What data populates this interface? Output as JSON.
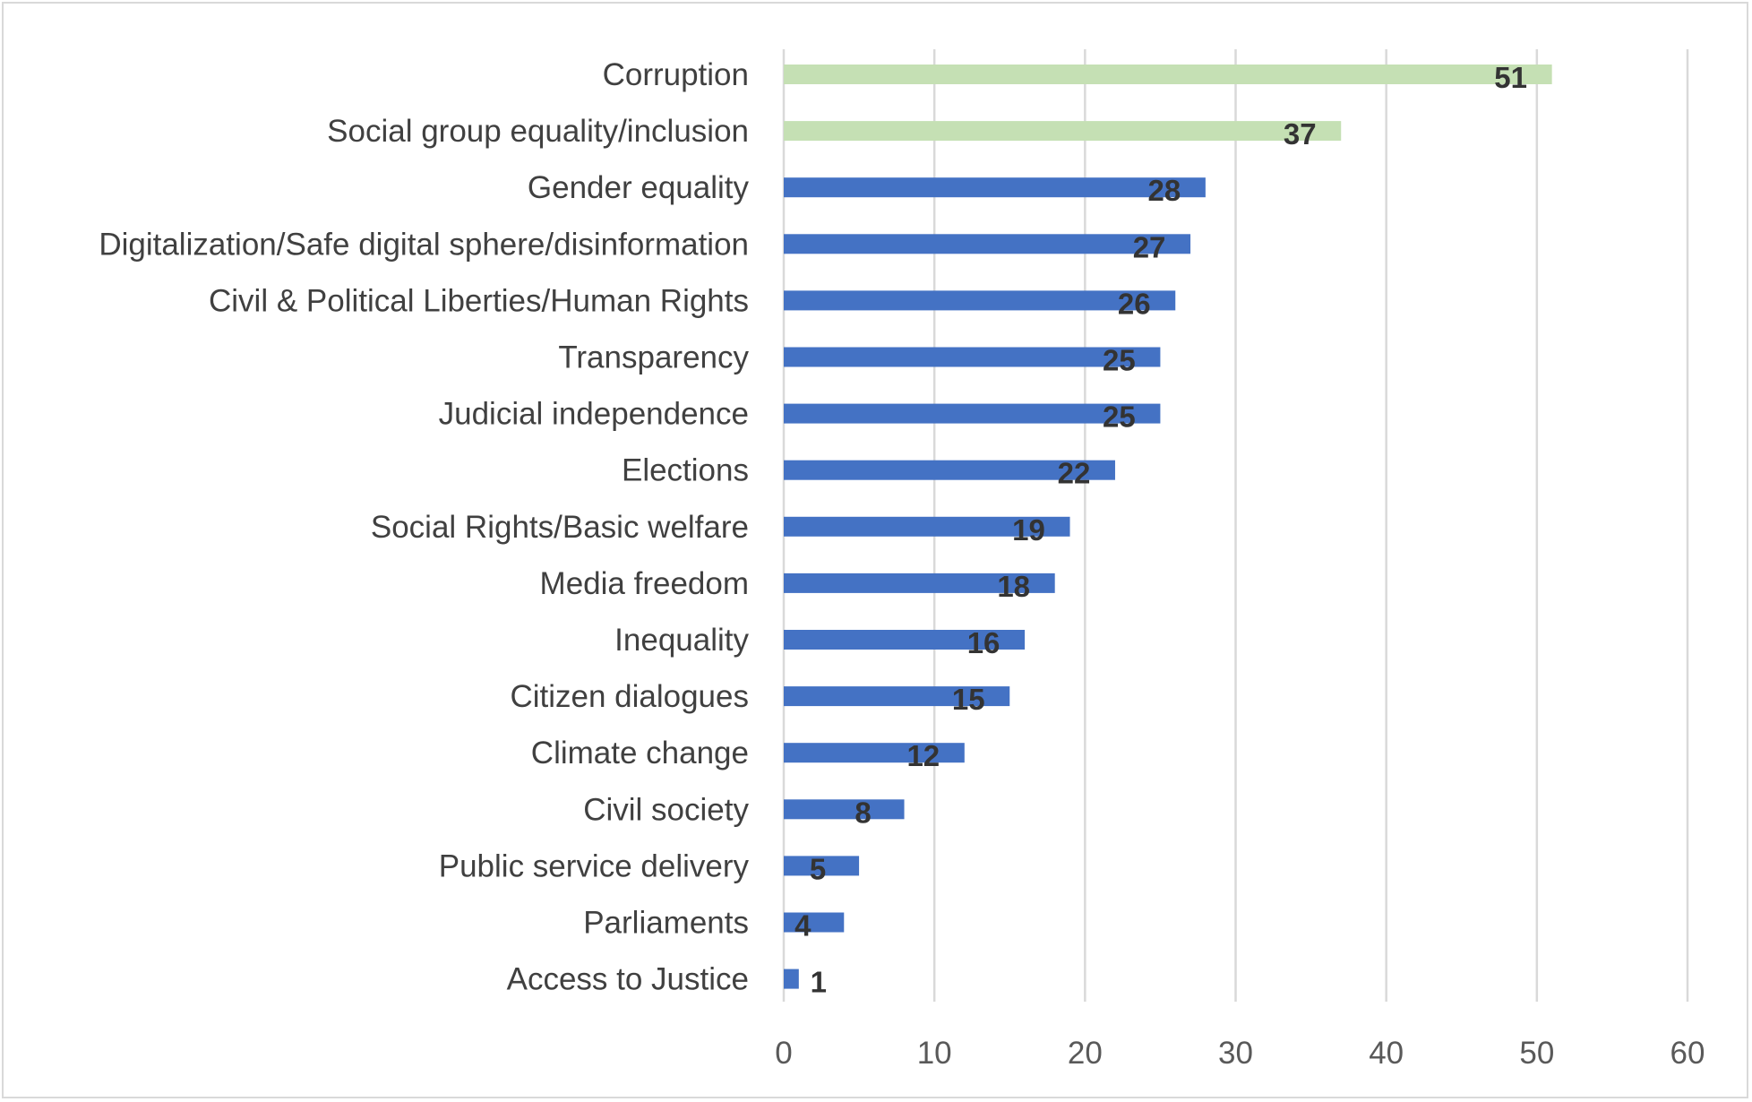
{
  "chart_data": {
    "type": "bar",
    "orientation": "horizontal",
    "title": "",
    "xlabel": "",
    "ylabel": "",
    "xlim": [
      0,
      60
    ],
    "xticks": [
      0,
      10,
      20,
      30,
      40,
      50,
      60
    ],
    "grid": "vertical",
    "legend": "none",
    "colors": {
      "highlight": "#c5e0b4",
      "default": "#4472c4"
    },
    "categories": [
      "Corruption",
      "Social group equality/inclusion",
      "Gender equality",
      "Digitalization/Safe digital sphere/disinformation",
      "Civil & Political Liberties/Human Rights",
      "Transparency",
      "Judicial independence",
      "Elections",
      "Social Rights/Basic welfare",
      "Media freedom",
      "Inequality",
      "Citizen dialogues",
      "Climate change",
      "Civil society",
      "Public service delivery",
      "Parliaments",
      "Access to Justice"
    ],
    "values": [
      51,
      37,
      28,
      27,
      26,
      25,
      25,
      22,
      19,
      18,
      16,
      15,
      12,
      8,
      5,
      4,
      1
    ],
    "highlighted": [
      true,
      true,
      false,
      false,
      false,
      false,
      false,
      false,
      false,
      false,
      false,
      false,
      false,
      false,
      false,
      false,
      false
    ]
  }
}
